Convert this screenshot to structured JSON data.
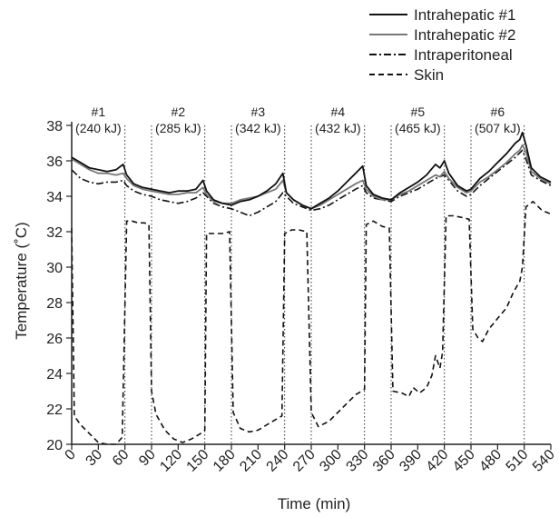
{
  "chart_data": {
    "type": "line",
    "xlabel": "Time (min)",
    "ylabel": "Temperature (˚C)",
    "xlim": [
      0,
      540
    ],
    "ylim": [
      20,
      38
    ],
    "xticks": [
      0,
      30,
      60,
      90,
      120,
      150,
      180,
      210,
      240,
      270,
      300,
      330,
      360,
      390,
      420,
      450,
      480,
      510,
      540
    ],
    "yticks": [
      20,
      22,
      24,
      26,
      28,
      30,
      32,
      34,
      36,
      38
    ],
    "legend_position": "top-right",
    "ablations": [
      {
        "label": "#1",
        "energy": "(240 kJ)",
        "start": 0,
        "end": 60
      },
      {
        "label": "#2",
        "energy": "(285 kJ)",
        "start": 90,
        "end": 150
      },
      {
        "label": "#3",
        "energy": "(342 kJ)",
        "start": 180,
        "end": 240
      },
      {
        "label": "#4",
        "energy": "(432 kJ)",
        "start": 270,
        "end": 330
      },
      {
        "label": "#5",
        "energy": "(465 kJ)",
        "start": 360,
        "end": 420
      },
      {
        "label": "#6",
        "energy": "(507 kJ)",
        "start": 450,
        "end": 510
      }
    ],
    "series": [
      {
        "name": "Intrahepatic #1",
        "color": "#111111",
        "style": "solid",
        "points": [
          [
            0,
            36.2
          ],
          [
            10,
            35.9
          ],
          [
            20,
            35.6
          ],
          [
            30,
            35.5
          ],
          [
            40,
            35.4
          ],
          [
            50,
            35.5
          ],
          [
            58,
            35.8
          ],
          [
            62,
            35.2
          ],
          [
            70,
            34.7
          ],
          [
            80,
            34.5
          ],
          [
            90,
            34.4
          ],
          [
            100,
            34.3
          ],
          [
            110,
            34.2
          ],
          [
            120,
            34.3
          ],
          [
            130,
            34.3
          ],
          [
            140,
            34.4
          ],
          [
            148,
            34.9
          ],
          [
            152,
            34.3
          ],
          [
            160,
            33.8
          ],
          [
            170,
            33.6
          ],
          [
            180,
            33.5
          ],
          [
            190,
            33.7
          ],
          [
            200,
            33.8
          ],
          [
            210,
            34.0
          ],
          [
            220,
            34.3
          ],
          [
            230,
            34.7
          ],
          [
            238,
            35.3
          ],
          [
            242,
            34.2
          ],
          [
            250,
            33.8
          ],
          [
            260,
            33.5
          ],
          [
            270,
            33.3
          ],
          [
            280,
            33.6
          ],
          [
            290,
            33.9
          ],
          [
            300,
            34.3
          ],
          [
            310,
            34.8
          ],
          [
            320,
            35.3
          ],
          [
            328,
            35.7
          ],
          [
            332,
            34.6
          ],
          [
            340,
            34.1
          ],
          [
            350,
            33.9
          ],
          [
            360,
            33.8
          ],
          [
            370,
            34.2
          ],
          [
            380,
            34.5
          ],
          [
            390,
            34.8
          ],
          [
            400,
            35.2
          ],
          [
            410,
            35.8
          ],
          [
            415,
            35.6
          ],
          [
            420,
            36.0
          ],
          [
            425,
            35.3
          ],
          [
            435,
            34.6
          ],
          [
            445,
            34.3
          ],
          [
            450,
            34.4
          ],
          [
            460,
            35.0
          ],
          [
            470,
            35.4
          ],
          [
            480,
            35.9
          ],
          [
            490,
            36.4
          ],
          [
            500,
            37.0
          ],
          [
            505,
            37.2
          ],
          [
            508,
            37.6
          ],
          [
            512,
            36.9
          ],
          [
            518,
            35.6
          ],
          [
            528,
            35.1
          ],
          [
            540,
            34.8
          ]
        ]
      },
      {
        "name": "Intrahepatic #2",
        "color": "#777777",
        "style": "solid",
        "points": [
          [
            0,
            36.1
          ],
          [
            10,
            35.8
          ],
          [
            20,
            35.5
          ],
          [
            30,
            35.3
          ],
          [
            40,
            35.3
          ],
          [
            50,
            35.2
          ],
          [
            58,
            35.3
          ],
          [
            62,
            35.0
          ],
          [
            70,
            34.6
          ],
          [
            80,
            34.4
          ],
          [
            90,
            34.3
          ],
          [
            100,
            34.2
          ],
          [
            110,
            34.1
          ],
          [
            120,
            34.1
          ],
          [
            130,
            34.2
          ],
          [
            140,
            34.2
          ],
          [
            148,
            34.5
          ],
          [
            152,
            34.1
          ],
          [
            160,
            33.7
          ],
          [
            170,
            33.6
          ],
          [
            180,
            33.6
          ],
          [
            190,
            33.8
          ],
          [
            200,
            33.9
          ],
          [
            210,
            34.0
          ],
          [
            220,
            34.2
          ],
          [
            230,
            34.4
          ],
          [
            238,
            34.9
          ],
          [
            242,
            34.2
          ],
          [
            250,
            33.8
          ],
          [
            260,
            33.5
          ],
          [
            270,
            33.3
          ],
          [
            280,
            33.5
          ],
          [
            290,
            33.8
          ],
          [
            300,
            34.1
          ],
          [
            310,
            34.4
          ],
          [
            320,
            34.7
          ],
          [
            328,
            34.9
          ],
          [
            332,
            34.4
          ],
          [
            340,
            34.0
          ],
          [
            350,
            33.8
          ],
          [
            360,
            33.8
          ],
          [
            370,
            34.1
          ],
          [
            380,
            34.3
          ],
          [
            390,
            34.6
          ],
          [
            400,
            34.9
          ],
          [
            410,
            35.2
          ],
          [
            415,
            35.1
          ],
          [
            420,
            35.4
          ],
          [
            425,
            35.0
          ],
          [
            435,
            34.5
          ],
          [
            445,
            34.2
          ],
          [
            450,
            34.3
          ],
          [
            460,
            34.8
          ],
          [
            470,
            35.1
          ],
          [
            480,
            35.5
          ],
          [
            490,
            35.9
          ],
          [
            500,
            36.4
          ],
          [
            505,
            36.6
          ],
          [
            508,
            36.9
          ],
          [
            512,
            36.5
          ],
          [
            518,
            35.4
          ],
          [
            528,
            35.0
          ],
          [
            540,
            34.7
          ]
        ]
      },
      {
        "name": "Intraperitoneal",
        "color": "#111111",
        "style": "dashdot",
        "points": [
          [
            0,
            35.5
          ],
          [
            10,
            35.0
          ],
          [
            20,
            34.8
          ],
          [
            30,
            34.7
          ],
          [
            40,
            34.8
          ],
          [
            50,
            34.8
          ],
          [
            58,
            34.9
          ],
          [
            62,
            34.6
          ],
          [
            70,
            34.3
          ],
          [
            80,
            34.1
          ],
          [
            90,
            34.0
          ],
          [
            100,
            33.8
          ],
          [
            110,
            33.7
          ],
          [
            120,
            33.6
          ],
          [
            130,
            33.7
          ],
          [
            140,
            33.9
          ],
          [
            148,
            34.2
          ],
          [
            152,
            34.0
          ],
          [
            160,
            33.6
          ],
          [
            170,
            33.4
          ],
          [
            180,
            33.3
          ],
          [
            190,
            33.1
          ],
          [
            200,
            32.9
          ],
          [
            210,
            33.1
          ],
          [
            220,
            33.4
          ],
          [
            230,
            33.7
          ],
          [
            238,
            34.2
          ],
          [
            242,
            34.0
          ],
          [
            250,
            33.6
          ],
          [
            260,
            33.4
          ],
          [
            270,
            33.2
          ],
          [
            280,
            33.3
          ],
          [
            290,
            33.5
          ],
          [
            300,
            33.8
          ],
          [
            310,
            34.1
          ],
          [
            320,
            34.4
          ],
          [
            328,
            34.6
          ],
          [
            332,
            34.2
          ],
          [
            340,
            33.9
          ],
          [
            350,
            33.8
          ],
          [
            360,
            33.7
          ],
          [
            370,
            34.0
          ],
          [
            380,
            34.2
          ],
          [
            390,
            34.4
          ],
          [
            400,
            34.7
          ],
          [
            410,
            35.0
          ],
          [
            420,
            35.2
          ],
          [
            425,
            34.9
          ],
          [
            435,
            34.3
          ],
          [
            445,
            34.0
          ],
          [
            450,
            34.1
          ],
          [
            460,
            34.6
          ],
          [
            470,
            35.0
          ],
          [
            480,
            35.4
          ],
          [
            490,
            35.8
          ],
          [
            500,
            36.2
          ],
          [
            508,
            36.6
          ],
          [
            512,
            36.1
          ],
          [
            518,
            35.2
          ],
          [
            528,
            34.9
          ],
          [
            540,
            34.6
          ]
        ]
      },
      {
        "name": "Skin",
        "color": "#111111",
        "style": "dashed",
        "points": [
          [
            0,
            32.2
          ],
          [
            3,
            21.6
          ],
          [
            10,
            21.1
          ],
          [
            20,
            20.6
          ],
          [
            30,
            20.1
          ],
          [
            40,
            20.0
          ],
          [
            50,
            20.0
          ],
          [
            57,
            20.4
          ],
          [
            62,
            32.6
          ],
          [
            68,
            32.6
          ],
          [
            75,
            32.5
          ],
          [
            82,
            32.5
          ],
          [
            87,
            32.4
          ],
          [
            90,
            23.0
          ],
          [
            95,
            21.7
          ],
          [
            105,
            20.8
          ],
          [
            115,
            20.3
          ],
          [
            125,
            20.1
          ],
          [
            135,
            20.3
          ],
          [
            145,
            20.6
          ],
          [
            150,
            20.8
          ],
          [
            152,
            31.9
          ],
          [
            160,
            31.9
          ],
          [
            170,
            31.9
          ],
          [
            178,
            32.0
          ],
          [
            182,
            21.8
          ],
          [
            190,
            20.9
          ],
          [
            200,
            20.7
          ],
          [
            210,
            20.8
          ],
          [
            220,
            21.1
          ],
          [
            230,
            21.4
          ],
          [
            237,
            21.6
          ],
          [
            240,
            31.9
          ],
          [
            248,
            32.1
          ],
          [
            256,
            32.1
          ],
          [
            265,
            32.0
          ],
          [
            270,
            21.8
          ],
          [
            278,
            21.0
          ],
          [
            290,
            21.3
          ],
          [
            300,
            21.8
          ],
          [
            310,
            22.3
          ],
          [
            320,
            22.8
          ],
          [
            330,
            23.1
          ],
          [
            332,
            32.4
          ],
          [
            340,
            32.6
          ],
          [
            350,
            32.3
          ],
          [
            358,
            32.2
          ],
          [
            362,
            23.0
          ],
          [
            372,
            22.9
          ],
          [
            380,
            22.7
          ],
          [
            385,
            23.2
          ],
          [
            392,
            22.9
          ],
          [
            400,
            23.2
          ],
          [
            406,
            23.9
          ],
          [
            410,
            25.0
          ],
          [
            415,
            24.3
          ],
          [
            418,
            25.2
          ],
          [
            422,
            32.9
          ],
          [
            430,
            32.9
          ],
          [
            440,
            32.8
          ],
          [
            448,
            32.7
          ],
          [
            452,
            26.5
          ],
          [
            458,
            26.0
          ],
          [
            463,
            25.8
          ],
          [
            470,
            26.5
          ],
          [
            480,
            27.1
          ],
          [
            490,
            27.7
          ],
          [
            498,
            28.6
          ],
          [
            505,
            29.2
          ],
          [
            508,
            30.0
          ],
          [
            512,
            33.4
          ],
          [
            520,
            33.7
          ],
          [
            530,
            33.2
          ],
          [
            540,
            33.0
          ]
        ]
      }
    ]
  }
}
